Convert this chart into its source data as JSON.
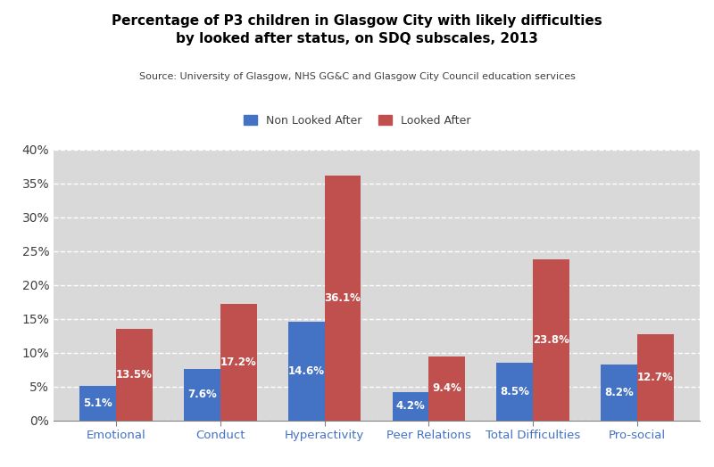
{
  "title_line1": "Percentage of P3 children in Glasgow City with likely difficulties",
  "title_line2": "by looked after status, on SDQ subscales, 2013",
  "subtitle": "Source: University of Glasgow, NHS GG&C and Glasgow City Council education services",
  "categories": [
    "Emotional",
    "Conduct",
    "Hyperactivity",
    "Peer Relations",
    "Total Difficulties",
    "Pro-social"
  ],
  "non_looked_after": [
    5.1,
    7.6,
    14.6,
    4.2,
    8.5,
    8.2
  ],
  "looked_after": [
    13.5,
    17.2,
    36.1,
    9.4,
    23.8,
    12.7
  ],
  "color_non_looked": "#4472C4",
  "color_looked": "#C0504D",
  "ylim": [
    0,
    40
  ],
  "yticks": [
    0,
    5,
    10,
    15,
    20,
    25,
    30,
    35,
    40
  ],
  "ytick_labels": [
    "0%",
    "5%",
    "10%",
    "15%",
    "20%",
    "25%",
    "30%",
    "35%",
    "40%"
  ],
  "legend_non_looked": "Non Looked After",
  "legend_looked": "Looked After",
  "bar_width": 0.35,
  "background_color": "#D9D9D9",
  "title_color": "#000000",
  "subtitle_color": "#404040",
  "axis_label_color": "#4472C4"
}
